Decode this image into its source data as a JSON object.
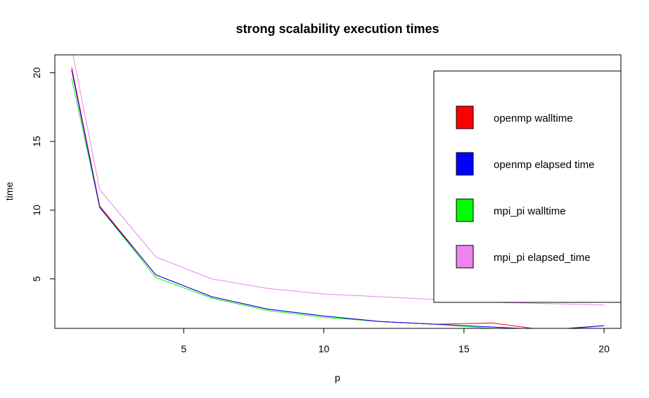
{
  "chart_data": {
    "type": "line",
    "title": "strong scalability execution times",
    "xlabel": "p",
    "ylabel": "time",
    "xlim": [
      0.4,
      20.6
    ],
    "ylim": [
      1.4,
      21.3
    ],
    "x_ticks": [
      5,
      10,
      15,
      20
    ],
    "y_ticks": [
      5,
      10,
      15,
      20
    ],
    "grid": false,
    "legend_position": "right",
    "series": [
      {
        "name": "openmp walltime",
        "color": "#ff0000",
        "x": [
          1,
          2,
          4,
          6,
          8,
          10,
          12,
          14,
          16,
          18,
          20
        ],
        "y": [
          20.4,
          10.3,
          5.3,
          3.7,
          2.8,
          2.3,
          1.9,
          1.7,
          1.8,
          1.25,
          1.6
        ]
      },
      {
        "name": "openmp elapsed time",
        "color": "#0000ff",
        "x": [
          1,
          2,
          4,
          6,
          8,
          10,
          12,
          14,
          16,
          18,
          20
        ],
        "y": [
          20.2,
          10.2,
          5.3,
          3.7,
          2.8,
          2.3,
          1.9,
          1.7,
          1.5,
          1.3,
          1.6
        ]
      },
      {
        "name": "mpi_pi walltime",
        "color": "#00ff00",
        "x": [
          1,
          2,
          4,
          6,
          8,
          10,
          12,
          14,
          16,
          18,
          20
        ],
        "y": [
          19.6,
          10.2,
          5.1,
          3.6,
          2.7,
          2.2,
          1.9,
          1.7,
          1.4,
          1.3,
          1.2
        ]
      },
      {
        "name": "mpi_pi elapsed_time",
        "color": "#ee82ee",
        "x": [
          1,
          2,
          4,
          6,
          8,
          10,
          12,
          14,
          16,
          18,
          20
        ],
        "y": [
          21.8,
          11.5,
          6.6,
          5.0,
          4.3,
          3.9,
          3.7,
          3.5,
          3.3,
          3.2,
          3.1
        ]
      }
    ]
  }
}
